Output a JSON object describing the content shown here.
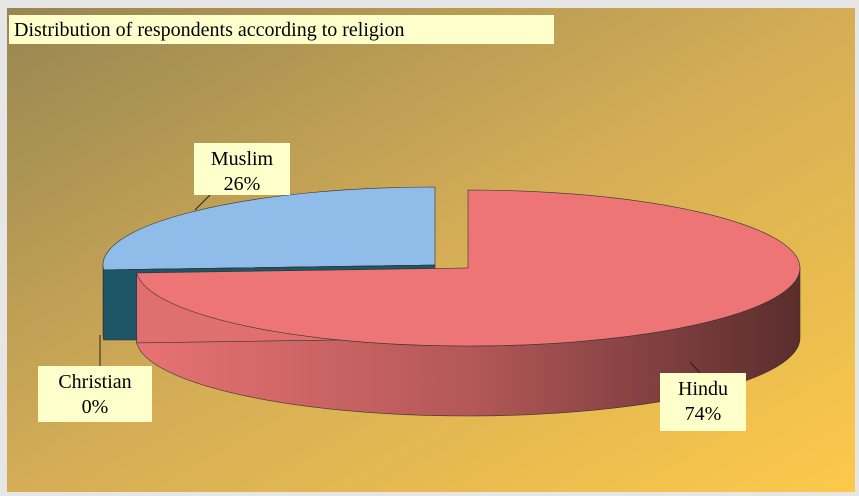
{
  "chart_data": {
    "type": "pie",
    "title": "Distribution of respondents according to religion",
    "categories": [
      "Hindu",
      "Christian",
      "Muslim"
    ],
    "values": [
      74,
      0,
      26
    ],
    "value_labels": [
      "74%",
      "0%",
      "26%"
    ],
    "colors": [
      "#ee7575",
      "#1d5667",
      "#8fbce9"
    ]
  }
}
